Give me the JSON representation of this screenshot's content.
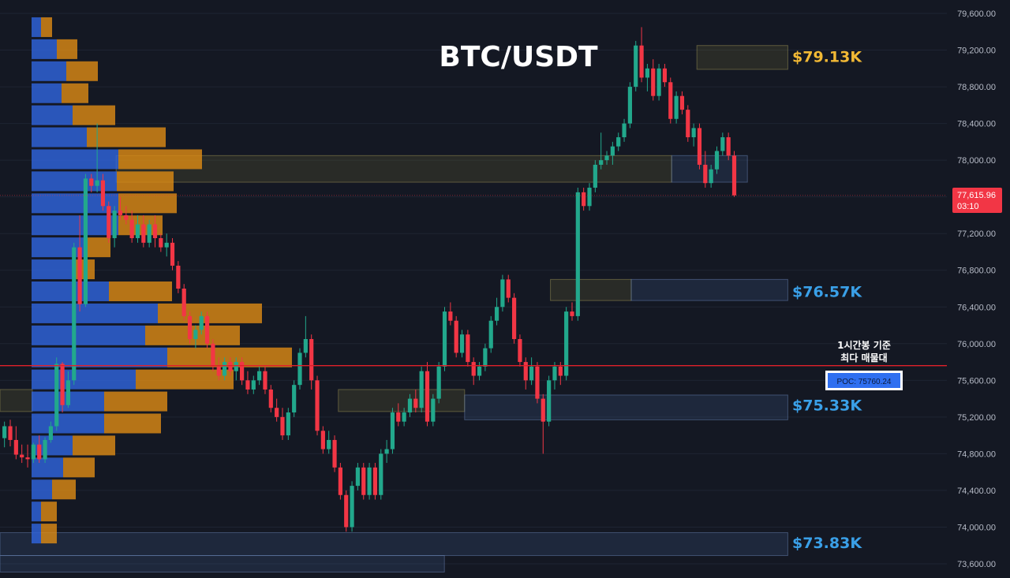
{
  "chart_data": {
    "type": "candlestick",
    "title": "BTC/USDT",
    "ylim": [
      73500,
      79700
    ],
    "y_ticks": [
      "79,600.00",
      "79,200.00",
      "78,800.00",
      "78,400.00",
      "78,000.00",
      "77,600.00",
      "77,200.00",
      "76,800.00",
      "76,400.00",
      "76,000.00",
      "75,600.00",
      "75,200.00",
      "74,800.00",
      "74,400.00",
      "74,000.00",
      "73,600.00"
    ],
    "y_tick_values": [
      79600,
      79200,
      78800,
      78400,
      78000,
      77600,
      77200,
      76800,
      76400,
      76000,
      75600,
      75200,
      74800,
      74400,
      74000,
      73600
    ],
    "current_price": {
      "value": 77615.96,
      "label": "77,615.96",
      "countdown": "03:10"
    },
    "poc": {
      "value": 75760.24,
      "label": "POC: 75760.24",
      "note_line1": "1시간봉 기준",
      "note_line2": "최다 매물대"
    },
    "levels": [
      {
        "value": 79130,
        "label": "$79.13K",
        "color": "#f2b935"
      },
      {
        "value": 76570,
        "label": "$76.57K",
        "color": "#3aa0e8"
      },
      {
        "value": 75330,
        "label": "$75.33K",
        "color": "#3aa0e8"
      },
      {
        "value": 73830,
        "label": "$73.83K",
        "color": "#3aa0e8"
      }
    ],
    "zones": [
      {
        "top": 79250,
        "bottom": 78990,
        "x_from": 0.69,
        "x_to": 0.78,
        "kind": "supply"
      },
      {
        "top": 78050,
        "bottom": 77760,
        "x_from": 0.115,
        "x_to": 0.665,
        "kind": "supply"
      },
      {
        "top": 78050,
        "bottom": 77760,
        "x_from": 0.665,
        "x_to": 0.74,
        "kind": "demand"
      },
      {
        "top": 76700,
        "bottom": 76470,
        "x_from": 0.545,
        "x_to": 0.625,
        "kind": "supply"
      },
      {
        "top": 76700,
        "bottom": 76470,
        "x_from": 0.625,
        "x_to": 0.78,
        "kind": "demand"
      },
      {
        "top": 75500,
        "bottom": 75260,
        "x_from": 0.0,
        "x_to": 0.032,
        "kind": "supply"
      },
      {
        "top": 75500,
        "bottom": 75260,
        "x_from": 0.335,
        "x_to": 0.46,
        "kind": "supply"
      },
      {
        "top": 75440,
        "bottom": 75170,
        "x_from": 0.46,
        "x_to": 0.78,
        "kind": "demand"
      },
      {
        "top": 73940,
        "bottom": 73690,
        "x_from": 0.0,
        "x_to": 0.78,
        "kind": "demand"
      },
      {
        "top": 73690,
        "bottom": 73510,
        "x_from": 0.0,
        "x_to": 0.44,
        "kind": "demand"
      }
    ],
    "volume_profile": [
      {
        "price": 79450,
        "buy": 6,
        "sell": 7
      },
      {
        "price": 79210,
        "buy": 16,
        "sell": 13
      },
      {
        "price": 78970,
        "buy": 22,
        "sell": 20
      },
      {
        "price": 78730,
        "buy": 19,
        "sell": 17
      },
      {
        "price": 78490,
        "buy": 26,
        "sell": 27
      },
      {
        "price": 78250,
        "buy": 35,
        "sell": 50
      },
      {
        "price": 78010,
        "buy": 55,
        "sell": 53
      },
      {
        "price": 77770,
        "buy": 54,
        "sell": 36
      },
      {
        "price": 77530,
        "buy": 55,
        "sell": 37
      },
      {
        "price": 77290,
        "buy": 55,
        "sell": 28
      },
      {
        "price": 77050,
        "buy": 33,
        "sell": 17
      },
      {
        "price": 76810,
        "buy": 26,
        "sell": 14
      },
      {
        "price": 76570,
        "buy": 49,
        "sell": 40
      },
      {
        "price": 76330,
        "buy": 80,
        "sell": 66
      },
      {
        "price": 76090,
        "buy": 72,
        "sell": 60
      },
      {
        "price": 75850,
        "buy": 86,
        "sell": 79
      },
      {
        "price": 75610,
        "buy": 66,
        "sell": 62
      },
      {
        "price": 75370,
        "buy": 46,
        "sell": 40
      },
      {
        "price": 75130,
        "buy": 46,
        "sell": 36
      },
      {
        "price": 74890,
        "buy": 26,
        "sell": 27
      },
      {
        "price": 74650,
        "buy": 20,
        "sell": 20
      },
      {
        "price": 74410,
        "buy": 13,
        "sell": 15
      },
      {
        "price": 74170,
        "buy": 6,
        "sell": 10
      },
      {
        "price": 73930,
        "buy": 6,
        "sell": 10
      }
    ],
    "candles": [
      [
        74970,
        75150,
        74870,
        75100
      ],
      [
        75100,
        75170,
        74880,
        74950
      ],
      [
        74950,
        75100,
        74740,
        74790
      ],
      [
        74790,
        74900,
        74700,
        74760
      ],
      [
        74760,
        74900,
        74650,
        74740
      ],
      [
        74740,
        74920,
        74700,
        74900
      ],
      [
        74900,
        75000,
        74700,
        74740
      ],
      [
        74740,
        74980,
        74700,
        74950
      ],
      [
        74950,
        75150,
        74920,
        75100
      ],
      [
        75100,
        75850,
        75050,
        75780
      ],
      [
        75780,
        75800,
        75250,
        75330
      ],
      [
        75330,
        75700,
        75300,
        75600
      ],
      [
        75600,
        77100,
        75550,
        77050
      ],
      [
        77050,
        77400,
        76350,
        76430
      ],
      [
        76430,
        77850,
        76400,
        77800
      ],
      [
        77800,
        77850,
        77650,
        77720
      ],
      [
        77720,
        78400,
        77650,
        77780
      ],
      [
        77780,
        77850,
        77450,
        77500
      ],
      [
        77500,
        77550,
        77100,
        77150
      ],
      [
        77150,
        77500,
        77050,
        77450
      ],
      [
        77450,
        77600,
        77350,
        77400
      ],
      [
        77400,
        77500,
        77300,
        77350
      ],
      [
        77350,
        77450,
        77100,
        77150
      ],
      [
        77150,
        77400,
        77100,
        77300
      ],
      [
        77300,
        77400,
        77050,
        77100
      ],
      [
        77100,
        77350,
        77050,
        77300
      ],
      [
        77300,
        77400,
        77050,
        77150
      ],
      [
        77150,
        77200,
        77000,
        77050
      ],
      [
        77050,
        77200,
        76950,
        77100
      ],
      [
        77100,
        77150,
        76800,
        76850
      ],
      [
        76850,
        76900,
        76550,
        76600
      ],
      [
        76600,
        76650,
        76250,
        76300
      ],
      [
        76300,
        76350,
        76000,
        76050
      ],
      [
        76050,
        76200,
        75950,
        76150
      ],
      [
        76150,
        76350,
        76100,
        76300
      ],
      [
        76300,
        76350,
        75950,
        76000
      ],
      [
        76000,
        76050,
        75700,
        75750
      ],
      [
        75750,
        75850,
        75600,
        75650
      ],
      [
        75650,
        75850,
        75600,
        75800
      ],
      [
        75800,
        75850,
        75650,
        75700
      ],
      [
        75700,
        75850,
        75600,
        75800
      ],
      [
        75800,
        75850,
        75550,
        75600
      ],
      [
        75600,
        75700,
        75450,
        75500
      ],
      [
        75500,
        75650,
        75450,
        75600
      ],
      [
        75600,
        75750,
        75550,
        75700
      ],
      [
        75700,
        75750,
        75450,
        75500
      ],
      [
        75500,
        75550,
        75250,
        75300
      ],
      [
        75300,
        75400,
        75150,
        75200
      ],
      [
        75200,
        75300,
        74950,
        75000
      ],
      [
        75000,
        75300,
        74950,
        75250
      ],
      [
        75250,
        75600,
        75200,
        75550
      ],
      [
        75550,
        75950,
        75500,
        75900
      ],
      [
        75900,
        76300,
        75850,
        76050
      ],
      [
        76050,
        76100,
        75500,
        75600
      ],
      [
        75600,
        75650,
        75000,
        75050
      ],
      [
        75050,
        75100,
        74800,
        74850
      ],
      [
        74850,
        75050,
        74800,
        74950
      ],
      [
        74950,
        75000,
        74600,
        74650
      ],
      [
        74650,
        74700,
        74300,
        74350
      ],
      [
        74350,
        74400,
        73950,
        74000
      ],
      [
        74000,
        74500,
        73950,
        74450
      ],
      [
        74450,
        74700,
        74400,
        74650
      ],
      [
        74650,
        74700,
        74300,
        74350
      ],
      [
        74350,
        74700,
        74300,
        74650
      ],
      [
        74650,
        74700,
        74300,
        74350
      ],
      [
        74350,
        74850,
        74300,
        74800
      ],
      [
        74800,
        74950,
        74700,
        74850
      ],
      [
        74850,
        75300,
        74800,
        75250
      ],
      [
        75250,
        75350,
        75100,
        75150
      ],
      [
        75150,
        75300,
        75100,
        75250
      ],
      [
        75250,
        75450,
        75200,
        75400
      ],
      [
        75400,
        75500,
        75250,
        75300
      ],
      [
        75300,
        75750,
        75250,
        75700
      ],
      [
        75700,
        75800,
        75100,
        75150
      ],
      [
        75150,
        75450,
        75100,
        75400
      ],
      [
        75400,
        75800,
        75350,
        75750
      ],
      [
        75750,
        76400,
        75700,
        76350
      ],
      [
        76350,
        76450,
        76200,
        76250
      ],
      [
        76250,
        76300,
        75850,
        75900
      ],
      [
        75900,
        76150,
        75850,
        76100
      ],
      [
        76100,
        76150,
        75750,
        75800
      ],
      [
        75800,
        75850,
        75550,
        75650
      ],
      [
        75650,
        75800,
        75600,
        75750
      ],
      [
        75750,
        76000,
        75700,
        75950
      ],
      [
        75950,
        76300,
        75900,
        76250
      ],
      [
        76250,
        76500,
        76200,
        76400
      ],
      [
        76400,
        76750,
        76350,
        76700
      ],
      [
        76700,
        76750,
        76450,
        76500
      ],
      [
        76500,
        76550,
        76000,
        76050
      ],
      [
        76050,
        76100,
        75750,
        75800
      ],
      [
        75800,
        75850,
        75500,
        75600
      ],
      [
        75600,
        75850,
        75550,
        75750
      ],
      [
        75750,
        75800,
        75350,
        75400
      ],
      [
        75400,
        75450,
        74800,
        75150
      ],
      [
        75150,
        75650,
        75100,
        75600
      ],
      [
        75600,
        75800,
        75500,
        75750
      ],
      [
        75750,
        75800,
        75550,
        75650
      ],
      [
        75650,
        76400,
        75600,
        76350
      ],
      [
        76350,
        76450,
        76250,
        76300
      ],
      [
        76300,
        77700,
        76250,
        77650
      ],
      [
        77650,
        77700,
        77450,
        77500
      ],
      [
        77500,
        77750,
        77450,
        77700
      ],
      [
        77700,
        78000,
        77650,
        77950
      ],
      [
        77950,
        78300,
        77900,
        78000
      ],
      [
        78000,
        78100,
        77950,
        78050
      ],
      [
        78050,
        78200,
        77950,
        78150
      ],
      [
        78150,
        78300,
        78100,
        78250
      ],
      [
        78250,
        78450,
        78200,
        78400
      ],
      [
        78400,
        78850,
        78350,
        78800
      ],
      [
        78800,
        79300,
        78750,
        79250
      ],
      [
        79250,
        79450,
        78850,
        78900
      ],
      [
        78900,
        79050,
        78750,
        79000
      ],
      [
        79000,
        79100,
        78650,
        78700
      ],
      [
        78700,
        79050,
        78650,
        79000
      ],
      [
        79000,
        79050,
        78800,
        78850
      ],
      [
        78850,
        78900,
        78400,
        78450
      ],
      [
        78450,
        78750,
        78400,
        78700
      ],
      [
        78700,
        78750,
        78500,
        78550
      ],
      [
        78550,
        78600,
        78200,
        78250
      ],
      [
        78250,
        78400,
        78150,
        78350
      ],
      [
        78350,
        78400,
        77900,
        77950
      ],
      [
        77950,
        78100,
        77700,
        77750
      ],
      [
        77750,
        77950,
        77700,
        77900
      ],
      [
        77900,
        78150,
        77850,
        78100
      ],
      [
        78100,
        78300,
        78050,
        78250
      ],
      [
        78250,
        78300,
        78000,
        78050
      ],
      [
        78050,
        78100,
        77600,
        77616
      ]
    ]
  }
}
